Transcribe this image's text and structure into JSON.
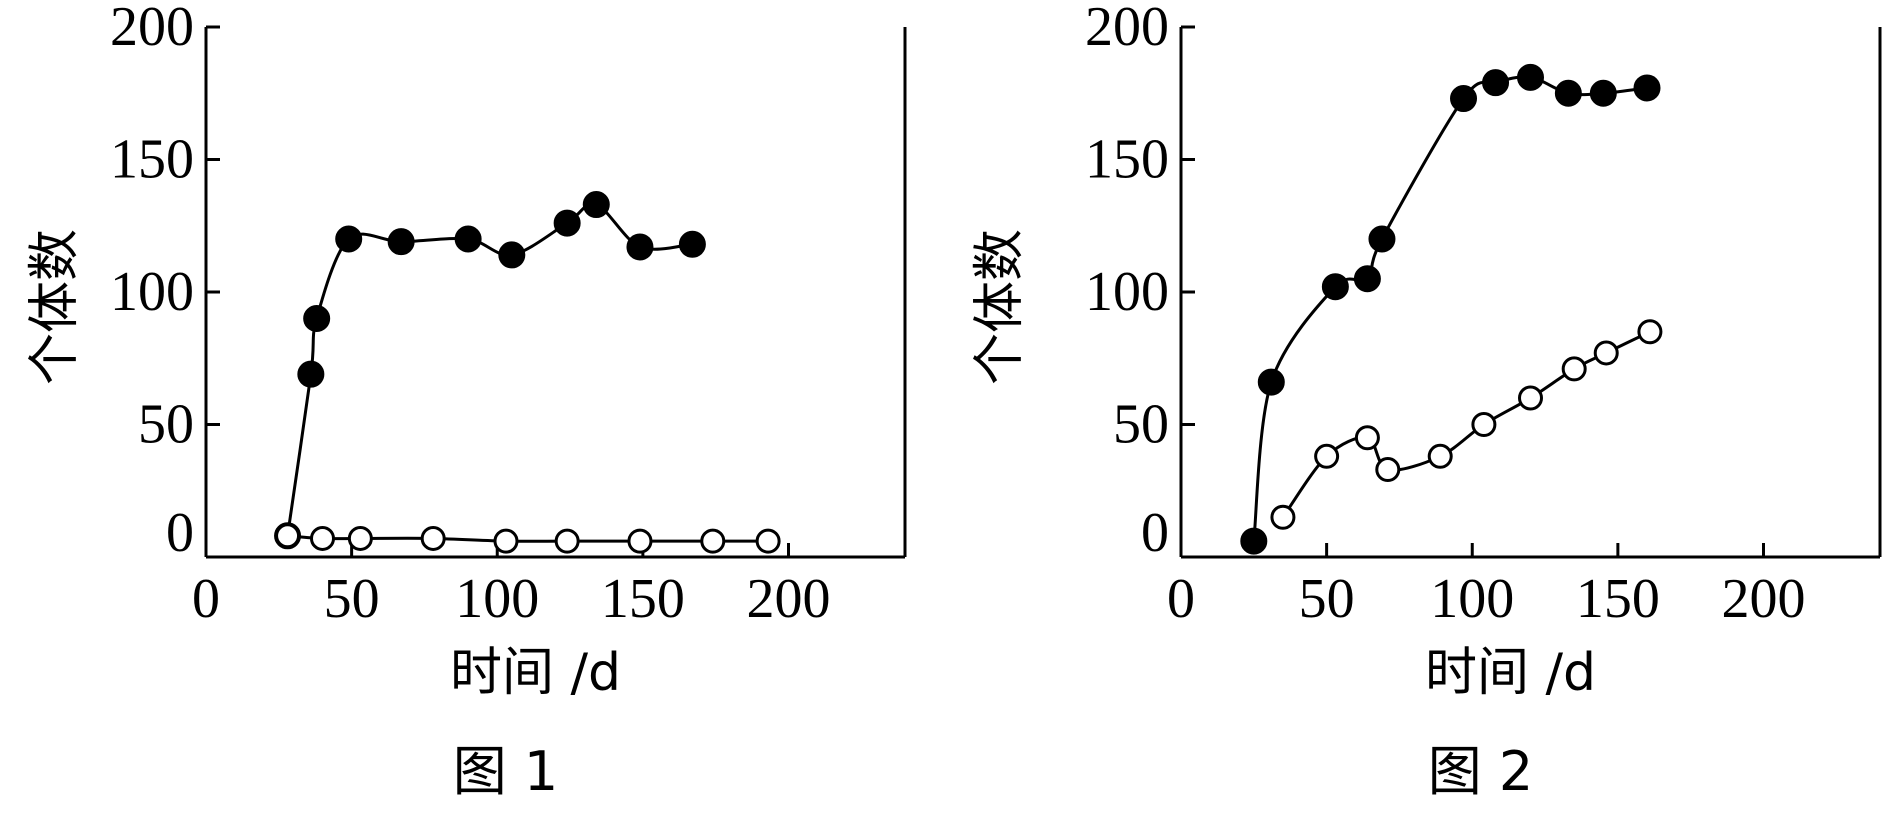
{
  "chart_data": [
    {
      "type": "line",
      "caption": "图 1",
      "xlabel": "时间 /d",
      "ylabel": "个体数",
      "xlim": [
        0,
        240
      ],
      "ylim": [
        0,
        200
      ],
      "x_ticks": [
        "0",
        "50",
        "100",
        "150",
        "200"
      ],
      "y_ticks": [
        "0",
        "50",
        "100",
        "150",
        "200"
      ],
      "grid": false,
      "series": [
        {
          "marker": "filled-circle",
          "color": "#000000",
          "points": [
            [
              28,
              8
            ],
            [
              36,
              69
            ],
            [
              38,
              90
            ],
            [
              49,
              120
            ],
            [
              67,
              119
            ],
            [
              90,
              120
            ],
            [
              105,
              114
            ],
            [
              124,
              126
            ],
            [
              134,
              133
            ],
            [
              149,
              117
            ],
            [
              167,
              118
            ]
          ]
        },
        {
          "marker": "hollow-circle",
          "color": "#000000",
          "points": [
            [
              28,
              8
            ],
            [
              40,
              7
            ],
            [
              53,
              7
            ],
            [
              78,
              7
            ],
            [
              103,
              6
            ],
            [
              124,
              6
            ],
            [
              149,
              6
            ],
            [
              174,
              6
            ],
            [
              193,
              6
            ]
          ]
        }
      ]
    },
    {
      "type": "line",
      "caption": "图 2",
      "xlabel": "时间 /d",
      "ylabel": "个体数",
      "xlim": [
        0,
        240
      ],
      "ylim": [
        0,
        200
      ],
      "x_ticks": [
        "0",
        "50",
        "100",
        "150",
        "200"
      ],
      "y_ticks": [
        "0",
        "50",
        "100",
        "150",
        "200"
      ],
      "grid": false,
      "series": [
        {
          "marker": "filled-circle",
          "color": "#000000",
          "points": [
            [
              25,
              6
            ],
            [
              31,
              66
            ],
            [
              53,
              102
            ],
            [
              64,
              105
            ],
            [
              69,
              120
            ],
            [
              97,
              173
            ],
            [
              108,
              179
            ],
            [
              120,
              181
            ],
            [
              133,
              175
            ],
            [
              145,
              175
            ],
            [
              160,
              177
            ]
          ]
        },
        {
          "marker": "hollow-circle",
          "color": "#000000",
          "points": [
            [
              35,
              15
            ],
            [
              50,
              38
            ],
            [
              64,
              45
            ],
            [
              71,
              33
            ],
            [
              89,
              38
            ],
            [
              104,
              50
            ],
            [
              120,
              60
            ],
            [
              135,
              71
            ],
            [
              146,
              77
            ],
            [
              161,
              85
            ]
          ]
        }
      ]
    }
  ]
}
